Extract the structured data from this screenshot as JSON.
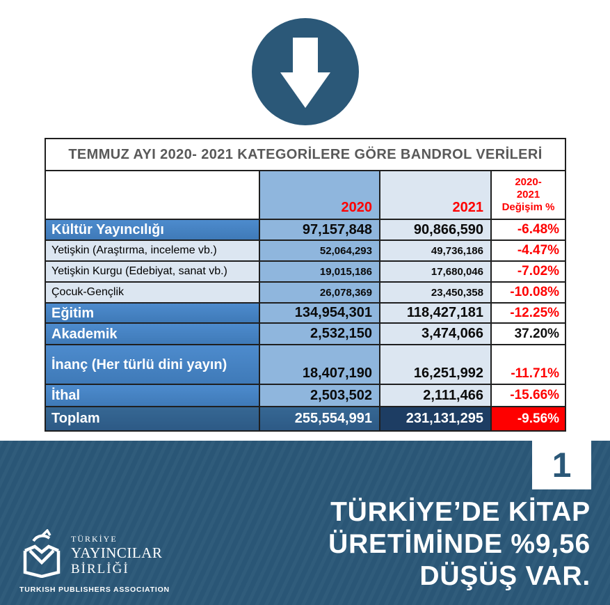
{
  "table": {
    "title": "TEMMUZ AYI 2020- 2021 KATEGORİLERE GÖRE BANDROL VERİLERİ",
    "columns": {
      "label": "",
      "year_2020": "2020",
      "year_2021": "2021",
      "change": "2020-\n2021\nDeğişim %"
    },
    "rows": [
      {
        "label": "Kültür Yayıncılığı",
        "v2020": "97,157,848",
        "v2021": "90,866,590",
        "change": "-6.48%",
        "style": "bold",
        "change_color": "red"
      },
      {
        "label": "Yetişkin (Araştırma, inceleme vb.)",
        "v2020": "52,064,293",
        "v2021": "49,736,186",
        "change": "-4.47%",
        "style": "plain",
        "change_color": "red"
      },
      {
        "label": "Yetişkin Kurgu (Edebiyat, sanat vb.)",
        "v2020": "19,015,186",
        "v2021": "17,680,046",
        "change": "-7.02%",
        "style": "plain",
        "change_color": "red"
      },
      {
        "label": "Çocuk-Gençlik",
        "v2020": "26,078,369",
        "v2021": "23,450,358",
        "change": "-10.08%",
        "style": "plain",
        "change_color": "red"
      },
      {
        "label": "Eğitim",
        "v2020": "134,954,301",
        "v2021": "118,427,181",
        "change": "-12.25%",
        "style": "bold",
        "change_color": "red"
      },
      {
        "label": "Akademik",
        "v2020": "2,532,150",
        "v2021": "3,474,066",
        "change": "37.20%",
        "style": "bold",
        "change_color": "black"
      },
      {
        "label": "İnanç (Her türlü dini yayın)",
        "v2020": "18,407,190",
        "v2021": "16,251,992",
        "change": "-11.71%",
        "style": "bold",
        "change_color": "red",
        "tall": true
      },
      {
        "label": "İthal",
        "v2020": "2,503,502",
        "v2021": "2,111,466",
        "change": "-15.66%",
        "style": "bold",
        "change_color": "red"
      },
      {
        "label": "Toplam",
        "v2020": "255,554,991",
        "v2021": "231,131,295",
        "change": "-9.56%",
        "style": "total",
        "change_color": "white"
      }
    ]
  },
  "chart_data": {
    "type": "table",
    "title": "TEMMUZ AYI 2020- 2021 KATEGORİLERE GÖRE BANDROL VERİLERİ",
    "categories": [
      "Kültür Yayıncılığı",
      "Yetişkin (Araştırma, inceleme vb.)",
      "Yetişkin Kurgu (Edebiyat, sanat vb.)",
      "Çocuk-Gençlik",
      "Eğitim",
      "Akademik",
      "İnanç (Her türlü dini yayın)",
      "İthal",
      "Toplam"
    ],
    "series": [
      {
        "name": "2020",
        "values": [
          97157848,
          52064293,
          19015186,
          26078369,
          134954301,
          2532150,
          18407190,
          2503502,
          255554991
        ]
      },
      {
        "name": "2021",
        "values": [
          90866590,
          49736186,
          17680046,
          23450358,
          118427181,
          3474066,
          16251992,
          2111466,
          231131295
        ]
      },
      {
        "name": "2020-2021 Değişim %",
        "values": [
          -6.48,
          -4.47,
          -7.02,
          -10.08,
          -12.25,
          37.2,
          -11.71,
          -15.66,
          -9.56
        ]
      }
    ]
  },
  "footer": {
    "page_number": "1",
    "headline_lines": [
      "TÜRKİYE’DE KİTAP",
      "ÜRETİMİNDE %9,56",
      "DÜŞÜŞ VAR."
    ],
    "logo": {
      "line1": "TÜRKİYE",
      "line2": "YAYINCILAR",
      "line3": "BİRLİĞİ",
      "subtitle": "TURKISH PUBLISHERS ASSOCIATION"
    }
  },
  "icons": {
    "top": "down-arrow-icon",
    "logo": "open-book-logo-icon"
  },
  "colors": {
    "footer_bg": "#2b5878",
    "circle_bg": "#2b5878",
    "row_blue": "#4583c4",
    "column_2020_blue": "#8fb6dd",
    "light_blue": "#dce6f1",
    "total_bg": "#30618f",
    "total_2021_bg": "#1d3d63",
    "accent_red": "#fe0000",
    "title_gray": "#595959"
  }
}
